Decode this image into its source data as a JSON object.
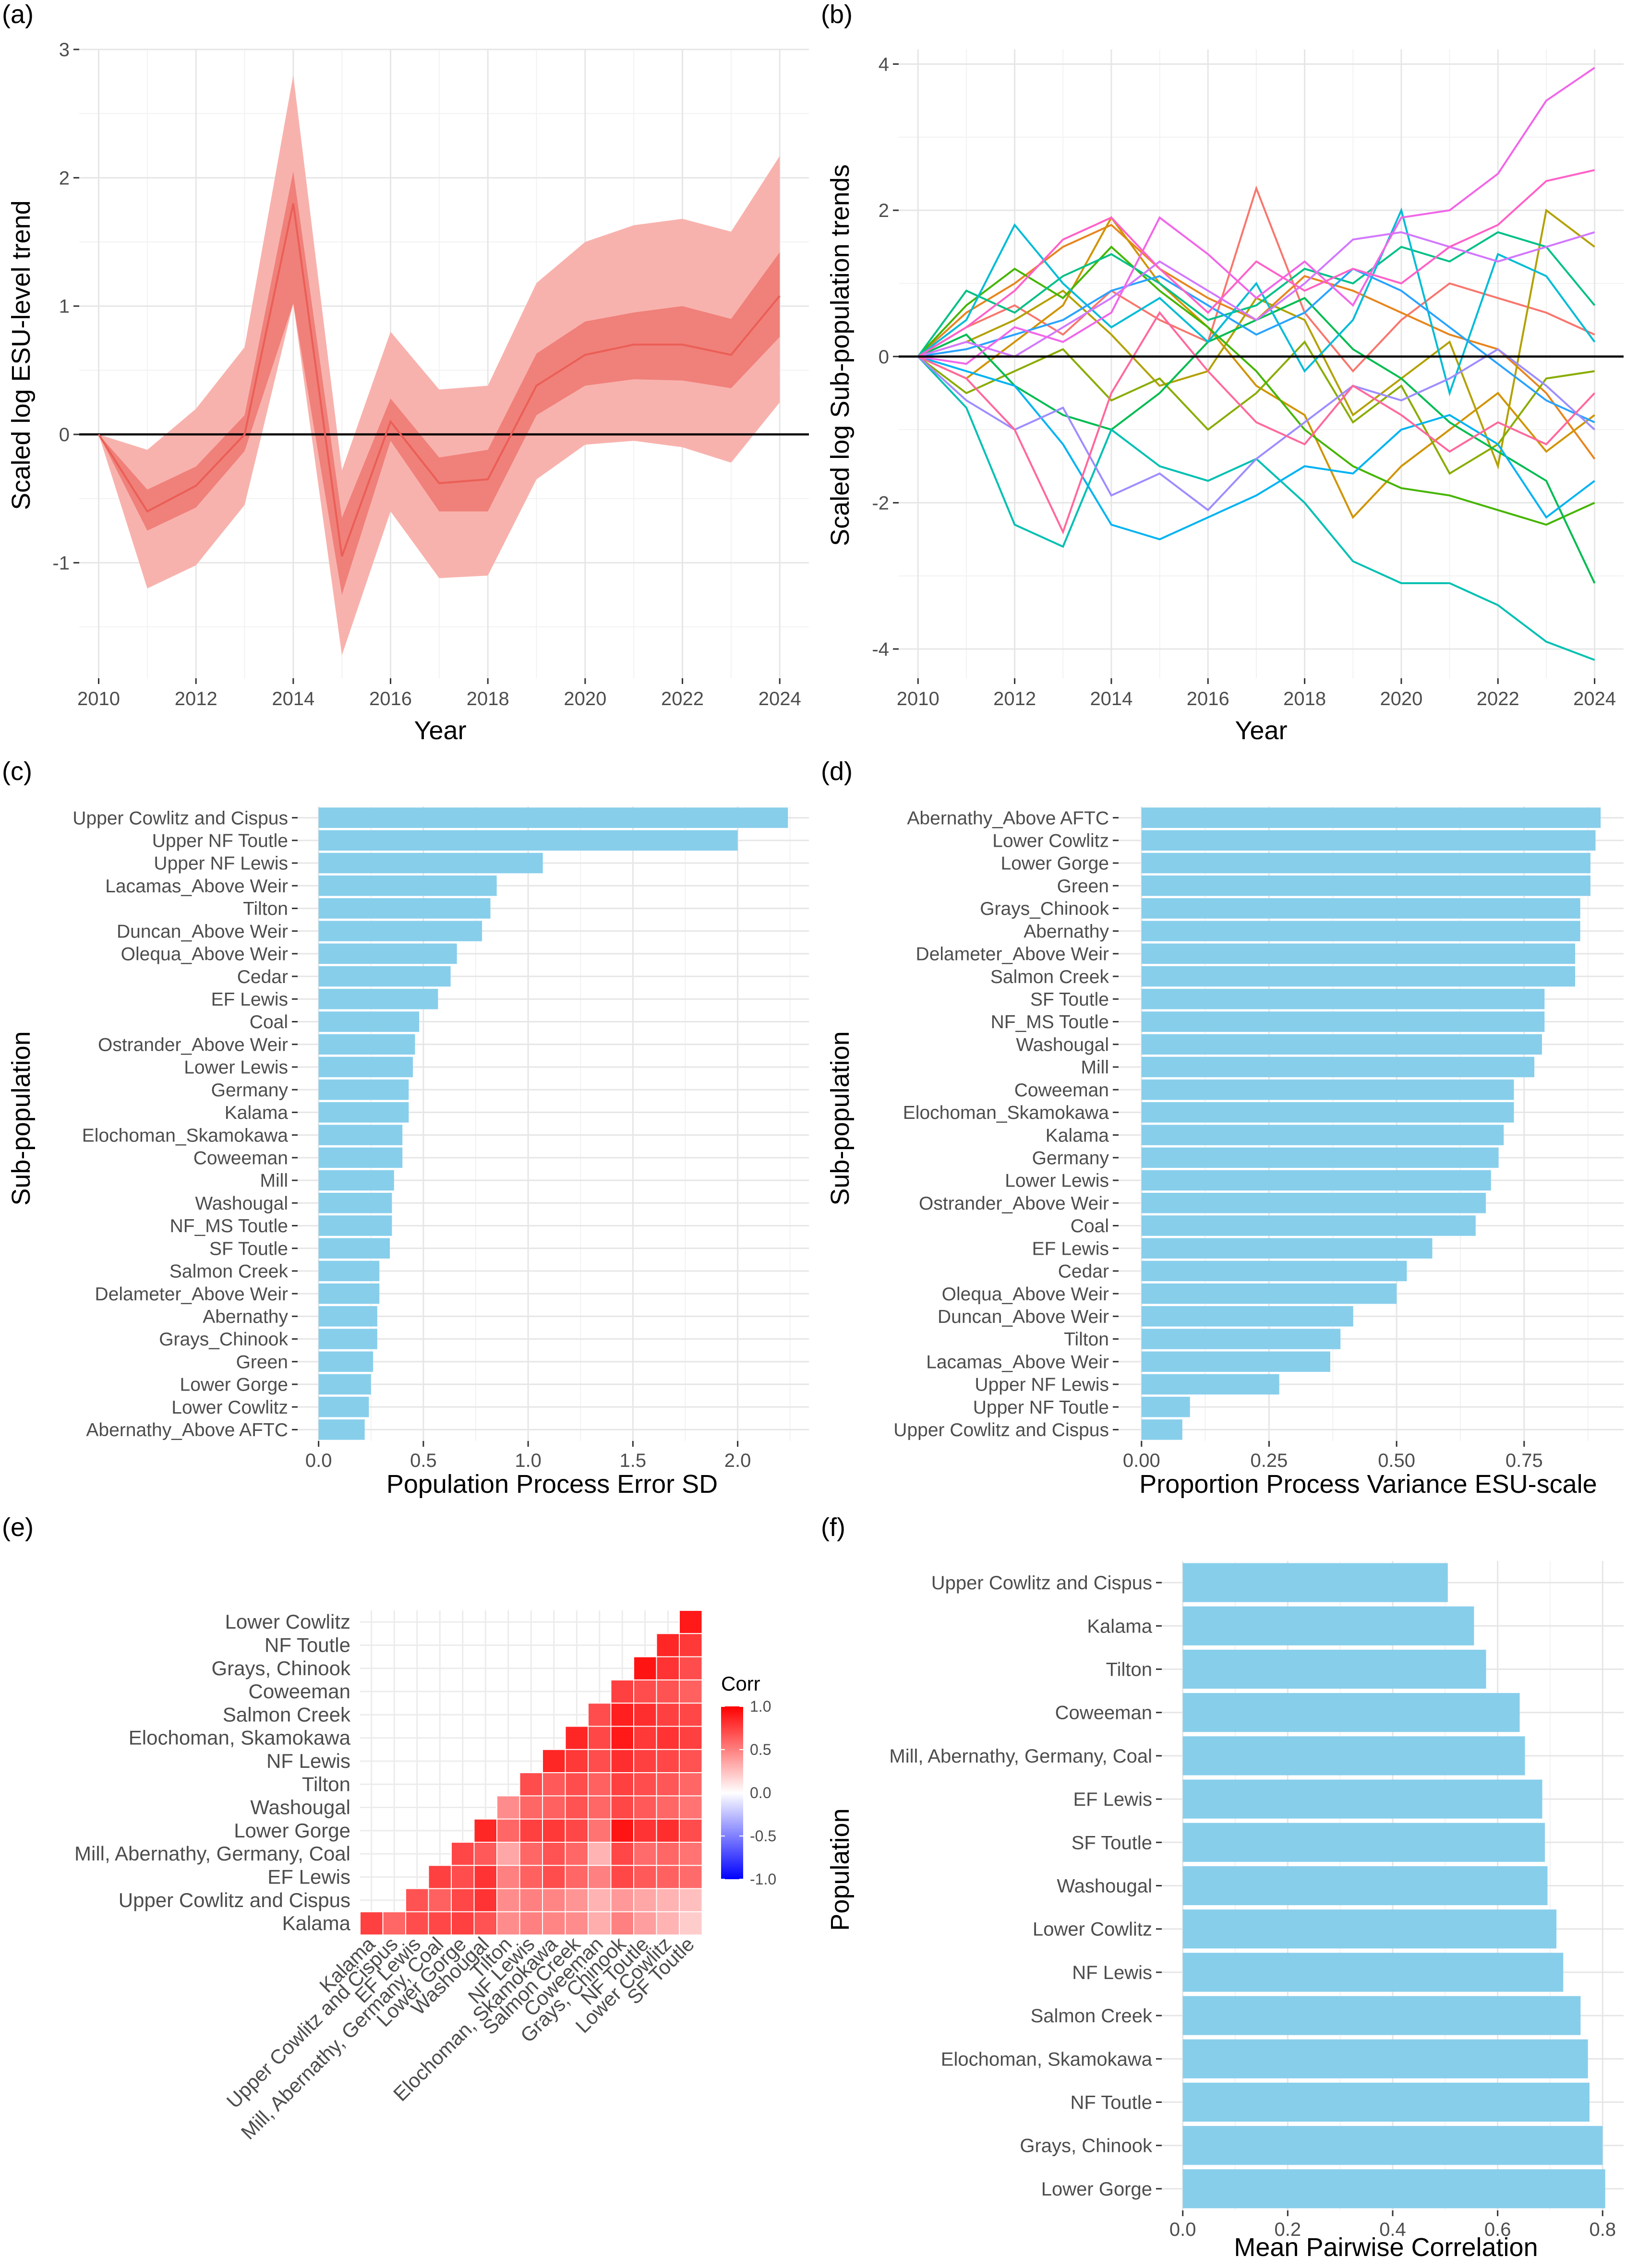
{
  "colors": {
    "ribbon_outer": "#f8b2ad",
    "ribbon_inner": "#f0807a",
    "trend_line": "#ea5f57",
    "bar": "#87ceeb",
    "zero_line": "#000000",
    "corr_high": "#ff0000",
    "corr_mid": "#ffffff",
    "corr_low": "#0000ff"
  },
  "chart_data": [
    {
      "panel": "(a)",
      "type": "area",
      "xlabel": "Year",
      "ylabel": "Scaled log ESU-level trend",
      "xlim": [
        2009.6,
        2024.6
      ],
      "ylim": [
        -1.9,
        3.0
      ],
      "xticks": [
        "2010",
        "2012",
        "2014",
        "2016",
        "2018",
        "2020",
        "2022",
        "2024"
      ],
      "yticks": [
        "-1",
        "0",
        "1",
        "2",
        "3"
      ],
      "x": [
        2010,
        2011,
        2012,
        2013,
        2014,
        2015,
        2016,
        2017,
        2018,
        2019,
        2020,
        2021,
        2022,
        2023,
        2024
      ],
      "series": [
        {
          "role": "median",
          "values": [
            0,
            -0.6,
            -0.4,
            0,
            1.8,
            -0.95,
            0.1,
            -0.38,
            -0.35,
            0.38,
            0.62,
            0.7,
            0.7,
            0.62,
            1.08
          ]
        },
        {
          "role": "inner_lower",
          "values": [
            0,
            -0.75,
            -0.57,
            -0.13,
            1.02,
            -1.25,
            -0.05,
            -0.6,
            -0.6,
            0.15,
            0.38,
            0.43,
            0.42,
            0.36,
            0.76
          ]
        },
        {
          "role": "inner_upper",
          "values": [
            0,
            -0.43,
            -0.25,
            0.15,
            2.05,
            -0.65,
            0.28,
            -0.18,
            -0.12,
            0.63,
            0.88,
            0.95,
            1.0,
            0.9,
            1.42
          ]
        },
        {
          "role": "outer_lower",
          "values": [
            0,
            -1.2,
            -1.02,
            -0.55,
            1.02,
            -1.72,
            -0.6,
            -1.12,
            -1.1,
            -0.35,
            -0.08,
            -0.05,
            -0.1,
            -0.22,
            0.25
          ]
        },
        {
          "role": "outer_upper",
          "values": [
            0,
            -0.12,
            0.2,
            0.68,
            2.8,
            -0.28,
            0.8,
            0.35,
            0.38,
            1.18,
            1.5,
            1.63,
            1.68,
            1.58,
            2.17
          ]
        }
      ]
    },
    {
      "panel": "(b)",
      "type": "line",
      "xlabel": "Year",
      "ylabel": "Scaled log Sub-population trends",
      "xlim": [
        2009.6,
        2024.6
      ],
      "ylim": [
        -4.4,
        4.2
      ],
      "xticks": [
        "2010",
        "2012",
        "2014",
        "2016",
        "2018",
        "2020",
        "2022",
        "2024"
      ],
      "yticks": [
        "-4",
        "-2",
        "0",
        "2",
        "4"
      ],
      "x": [
        2010,
        2011,
        2012,
        2013,
        2014,
        2015,
        2016,
        2017,
        2018,
        2019,
        2020,
        2021,
        2022,
        2023,
        2024
      ],
      "series": [
        {
          "color": "#F8766D",
          "values": [
            0,
            0.4,
            0.7,
            0.3,
            0.9,
            0.5,
            0.2,
            2.3,
            0.6,
            -0.2,
            0.5,
            1.0,
            0.8,
            0.6,
            0.3
          ]
        },
        {
          "color": "#E7851E",
          "values": [
            0,
            0.6,
            1.0,
            1.5,
            1.8,
            1.2,
            0.8,
            0.5,
            1.1,
            0.9,
            0.6,
            0.3,
            0.1,
            -0.5,
            -1.4
          ]
        },
        {
          "color": "#D09400",
          "values": [
            0,
            -0.3,
            0.2,
            0.7,
            1.9,
            1.0,
            0.4,
            -0.4,
            -0.8,
            -2.2,
            -1.5,
            -1.0,
            -0.5,
            -1.3,
            -0.8
          ]
        },
        {
          "color": "#B2A100",
          "values": [
            0,
            0.2,
            0.5,
            0.9,
            0.3,
            -0.4,
            -0.2,
            0.8,
            0.5,
            -0.8,
            -0.3,
            0.2,
            -1.5,
            2.0,
            1.5
          ]
        },
        {
          "color": "#89AC00",
          "values": [
            0,
            -0.5,
            -0.2,
            0.1,
            -0.6,
            -0.3,
            -1.0,
            -0.5,
            0.2,
            -0.9,
            -0.4,
            -1.6,
            -1.2,
            -0.3,
            -0.2
          ]
        },
        {
          "color": "#45B500",
          "values": [
            0,
            0.7,
            1.2,
            0.8,
            1.5,
            0.9,
            0.4,
            -0.2,
            -1.0,
            -1.5,
            -1.8,
            -1.9,
            -2.1,
            -2.3,
            -2.0
          ]
        },
        {
          "color": "#00BC51",
          "values": [
            0,
            0.3,
            -0.4,
            -0.8,
            -1.0,
            -0.5,
            0.2,
            0.5,
            0.8,
            0.1,
            -0.3,
            -0.9,
            -1.3,
            -1.7,
            -3.1
          ]
        },
        {
          "color": "#00C087",
          "values": [
            0,
            0.9,
            0.6,
            1.1,
            1.4,
            1.0,
            0.5,
            0.7,
            1.2,
            1.0,
            1.5,
            1.3,
            1.7,
            1.5,
            0.7
          ]
        },
        {
          "color": "#00C0B2",
          "values": [
            0,
            -0.7,
            -2.3,
            -2.6,
            -1.0,
            -1.5,
            -1.7,
            -1.4,
            -2.0,
            -2.8,
            -3.1,
            -3.1,
            -3.4,
            -3.9,
            -4.15
          ]
        },
        {
          "color": "#00BCD6",
          "values": [
            0,
            0.5,
            1.8,
            1.0,
            0.4,
            0.8,
            0.2,
            1.0,
            -0.2,
            0.5,
            2.0,
            -0.5,
            1.4,
            1.1,
            0.2
          ]
        },
        {
          "color": "#00B3F2",
          "values": [
            0,
            -0.2,
            -0.4,
            -1.2,
            -2.3,
            -2.5,
            -2.2,
            -1.9,
            -1.5,
            -1.6,
            -1.0,
            -0.8,
            -1.2,
            -2.2,
            -1.7
          ]
        },
        {
          "color": "#29A3FF",
          "values": [
            0,
            0.1,
            0.3,
            0.5,
            0.9,
            1.1,
            0.7,
            0.3,
            0.6,
            1.2,
            0.9,
            0.4,
            -0.1,
            -0.6,
            -0.9
          ]
        },
        {
          "color": "#9C8DFF",
          "values": [
            0,
            -0.6,
            -1.0,
            -0.7,
            -1.9,
            -1.6,
            -2.1,
            -1.4,
            -0.9,
            -0.4,
            -0.6,
            -0.3,
            0.1,
            -0.4,
            -1.0
          ]
        },
        {
          "color": "#D277FF",
          "values": [
            0,
            0.2,
            0.0,
            0.4,
            0.8,
            1.3,
            0.9,
            0.5,
            1.0,
            1.6,
            1.7,
            1.5,
            1.3,
            1.5,
            1.7
          ]
        },
        {
          "color": "#F166E8",
          "values": [
            0,
            -0.1,
            0.4,
            0.2,
            0.6,
            1.9,
            1.4,
            0.8,
            1.3,
            0.7,
            1.9,
            2.0,
            2.5,
            3.5,
            3.95
          ]
        },
        {
          "color": "#FF61C7",
          "values": [
            0,
            0.4,
            0.9,
            1.6,
            1.9,
            1.2,
            0.6,
            1.3,
            0.9,
            1.2,
            1.0,
            1.5,
            1.8,
            2.4,
            2.55
          ]
        },
        {
          "color": "#FF689C",
          "values": [
            0,
            -0.3,
            -1.0,
            -2.4,
            -0.5,
            0.6,
            -0.2,
            -0.9,
            -1.2,
            -0.4,
            -0.8,
            -1.3,
            -0.9,
            -1.2,
            -0.5
          ]
        }
      ]
    },
    {
      "panel": "(c)",
      "type": "bar",
      "xlabel": "Population Process Error SD",
      "ylabel": "Sub-population",
      "xlim": [
        -0.1,
        2.34
      ],
      "xticks": [
        "0.0",
        "0.5",
        "1.0",
        "1.5",
        "2.0"
      ],
      "categories": [
        "Upper Cowlitz and Cispus",
        "Upper NF Toutle",
        "Upper NF Lewis",
        "Lacamas_Above Weir",
        "Tilton",
        "Duncan_Above Weir",
        "Olequa_Above Weir",
        "Cedar",
        "EF Lewis",
        "Coal",
        "Ostrander_Above Weir",
        "Lower Lewis",
        "Germany",
        "Kalama",
        "Elochoman_Skamokawa",
        "Coweeman",
        "Mill",
        "Washougal",
        "NF_MS Toutle",
        "SF Toutle",
        "Salmon Creek",
        "Delameter_Above Weir",
        "Abernathy",
        "Grays_Chinook",
        "Green",
        "Lower Gorge",
        "Lower Cowlitz",
        "Abernathy_Above AFTC"
      ],
      "values": [
        2.24,
        2.0,
        1.07,
        0.85,
        0.82,
        0.78,
        0.66,
        0.63,
        0.57,
        0.48,
        0.46,
        0.45,
        0.43,
        0.43,
        0.4,
        0.4,
        0.36,
        0.35,
        0.35,
        0.34,
        0.29,
        0.29,
        0.28,
        0.28,
        0.26,
        0.25,
        0.24,
        0.22
      ]
    },
    {
      "panel": "(d)",
      "type": "bar",
      "xlabel": "Proportion Process Variance ESU-scale",
      "ylabel": "Sub-population",
      "xlim": [
        -0.045,
        0.945
      ],
      "xticks": [
        "0.00",
        "0.25",
        "0.50",
        "0.75"
      ],
      "categories": [
        "Abernathy_Above AFTC",
        "Lower Cowlitz",
        "Lower Gorge",
        "Green",
        "Grays_Chinook",
        "Abernathy",
        "Delameter_Above Weir",
        "Salmon Creek",
        "SF Toutle",
        "NF_MS Toutle",
        "Washougal",
        "Mill",
        "Coweeman",
        "Elochoman_Skamokawa",
        "Kalama",
        "Germany",
        "Lower Lewis",
        "Ostrander_Above Weir",
        "Coal",
        "EF Lewis",
        "Cedar",
        "Olequa_Above Weir",
        "Duncan_Above Weir",
        "Tilton",
        "Lacamas_Above Weir",
        "Upper NF Lewis",
        "Upper NF Toutle",
        "Upper Cowlitz and Cispus"
      ],
      "values": [
        0.9,
        0.89,
        0.88,
        0.88,
        0.86,
        0.86,
        0.85,
        0.85,
        0.79,
        0.79,
        0.785,
        0.77,
        0.73,
        0.73,
        0.71,
        0.7,
        0.685,
        0.675,
        0.655,
        0.57,
        0.52,
        0.5,
        0.415,
        0.39,
        0.37,
        0.27,
        0.095,
        0.08
      ]
    },
    {
      "panel": "(e)",
      "type": "heatmap",
      "legend_title": "Corr",
      "legend_ticks": [
        "1.0",
        "0.5",
        "0.0",
        "-0.5",
        "-1.0"
      ],
      "x_labels": [
        "Kalama",
        "Upper Cowlitz and Cispus",
        "EF Lewis",
        "Mill, Abernathy, Germany, Coal",
        "Lower Gorge",
        "Washougal",
        "Tilton",
        "NF Lewis",
        "Elochoman, Skamokawa",
        "Salmon Creek",
        "Coweeman",
        "Grays, Chinook",
        "NF Toutle",
        "Lower Cowlitz",
        "SF Toutle"
      ],
      "y_labels": [
        "Lower Cowlitz",
        "NF Toutle",
        "Grays, Chinook",
        "Coweeman",
        "Salmon Creek",
        "Elochoman, Skamokawa",
        "NF Lewis",
        "Tilton",
        "Washougal",
        "Lower Gorge",
        "Mill, Abernathy, Germany, Coal",
        "EF Lewis",
        "Upper Cowlitz and Cispus",
        "Kalama"
      ],
      "matrix": [
        [
          null,
          null,
          null,
          null,
          null,
          null,
          null,
          null,
          null,
          null,
          null,
          null,
          null,
          null,
          0.9
        ],
        [
          null,
          null,
          null,
          null,
          null,
          null,
          null,
          null,
          null,
          null,
          null,
          null,
          null,
          0.85,
          0.78
        ],
        [
          null,
          null,
          null,
          null,
          null,
          null,
          null,
          null,
          null,
          null,
          null,
          null,
          0.92,
          0.8,
          0.7
        ],
        [
          null,
          null,
          null,
          null,
          null,
          null,
          null,
          null,
          null,
          null,
          null,
          0.75,
          0.7,
          0.68,
          0.62
        ],
        [
          null,
          null,
          null,
          null,
          null,
          null,
          null,
          null,
          null,
          null,
          0.7,
          0.88,
          0.82,
          0.75,
          0.72
        ],
        [
          null,
          null,
          null,
          null,
          null,
          null,
          null,
          null,
          null,
          0.85,
          0.72,
          0.9,
          0.78,
          0.8,
          0.75
        ],
        [
          null,
          null,
          null,
          null,
          null,
          null,
          null,
          null,
          0.85,
          0.78,
          0.7,
          0.82,
          0.75,
          0.72,
          0.68
        ],
        [
          null,
          null,
          null,
          null,
          null,
          null,
          null,
          0.7,
          0.65,
          0.7,
          0.62,
          0.75,
          0.7,
          0.66,
          0.6
        ],
        [
          null,
          null,
          null,
          null,
          null,
          null,
          0.45,
          0.6,
          0.62,
          0.68,
          0.6,
          0.72,
          0.65,
          0.6,
          0.55
        ],
        [
          null,
          null,
          null,
          null,
          null,
          0.85,
          0.6,
          0.75,
          0.78,
          0.72,
          0.55,
          0.92,
          0.8,
          0.82,
          0.7
        ],
        [
          null,
          null,
          null,
          null,
          0.72,
          0.65,
          0.35,
          0.6,
          0.68,
          0.6,
          0.3,
          0.72,
          0.58,
          0.6,
          0.55
        ],
        [
          null,
          null,
          null,
          0.75,
          0.7,
          0.8,
          0.5,
          0.62,
          0.7,
          0.6,
          0.5,
          0.72,
          0.65,
          0.62,
          0.58
        ],
        [
          null,
          null,
          0.68,
          0.62,
          0.72,
          0.8,
          0.45,
          0.5,
          0.48,
          0.42,
          0.3,
          0.4,
          0.35,
          0.3,
          0.25
        ],
        [
          0.75,
          0.6,
          0.7,
          0.72,
          0.75,
          0.68,
          0.45,
          0.5,
          0.48,
          0.45,
          0.32,
          0.5,
          0.38,
          0.3,
          0.2
        ]
      ]
    },
    {
      "panel": "(f)",
      "type": "bar",
      "xlabel": "Mean Pairwise Correlation",
      "ylabel": "Population",
      "xlim": [
        -0.04,
        0.84
      ],
      "xticks": [
        "0.0",
        "0.2",
        "0.4",
        "0.6",
        "0.8"
      ],
      "categories": [
        "Upper Cowlitz and Cispus",
        "Kalama",
        "Tilton",
        "Coweeman",
        "Mill, Abernathy, Germany, Coal",
        "EF Lewis",
        "SF Toutle",
        "Washougal",
        "Lower Cowlitz",
        "NF Lewis",
        "Salmon Creek",
        "Elochoman, Skamokawa",
        "NF Toutle",
        "Grays, Chinook",
        "Lower Gorge"
      ],
      "values": [
        0.505,
        0.555,
        0.578,
        0.642,
        0.652,
        0.685,
        0.69,
        0.695,
        0.712,
        0.725,
        0.758,
        0.772,
        0.775,
        0.8,
        0.805
      ]
    }
  ]
}
